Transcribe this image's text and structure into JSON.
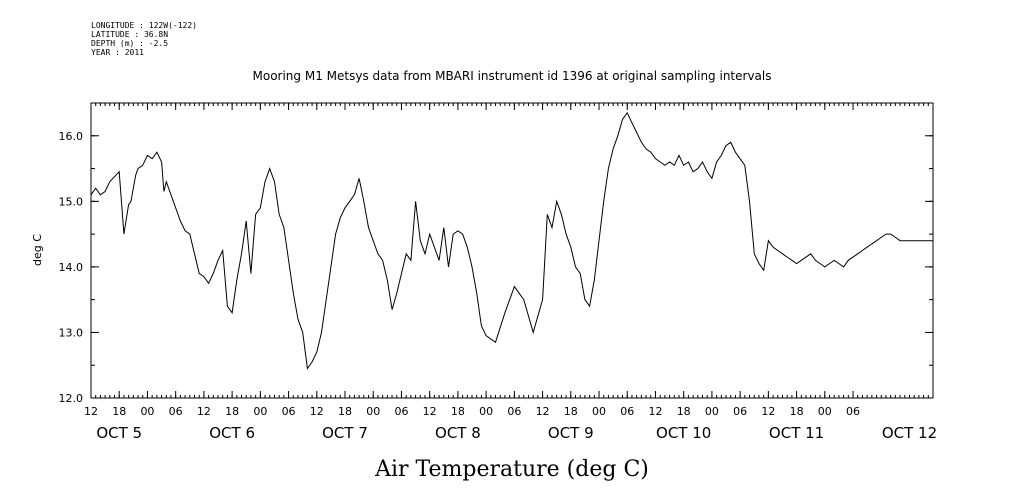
{
  "meta": {
    "longitude": "LONGITUDE : 122W(-122)",
    "latitude": "LATITUDE : 36.8N",
    "depth": "DEPTH (m) : -2.5",
    "year": "YEAR : 2011"
  },
  "chart_data": {
    "type": "line",
    "title": "Mooring M1 Metsys data from MBARI instrument id 1396 at original sampling intervals",
    "ylabel": "deg C",
    "footer_label": "Air Temperature (deg C)",
    "ylim": [
      12.0,
      16.5
    ],
    "xlim_hours": [
      -12,
      167
    ],
    "yticks": [
      "12.0",
      "13.0",
      "14.0",
      "15.0",
      "16.0"
    ],
    "yticks_values": [
      12.0,
      13.0,
      14.0,
      15.0,
      16.0
    ],
    "hour_ticks": [
      "12",
      "18",
      "00",
      "06",
      "12",
      "18",
      "00",
      "06",
      "12",
      "18",
      "00",
      "06",
      "12",
      "18",
      "00",
      "06",
      "12",
      "18",
      "00",
      "06",
      "12",
      "18",
      "00",
      "06",
      "12",
      "18",
      "00",
      "06"
    ],
    "date_labels": [
      "OCT  5",
      "OCT  6",
      "OCT  7",
      "OCT  8",
      "OCT  9",
      "OCT 10",
      "OCT 11",
      "OCT 12"
    ],
    "grid": false,
    "series": [
      {
        "x": [
          -12,
          -11,
          -10,
          -9,
          -8,
          -6,
          -5,
          -4,
          -3.5,
          -3,
          -2.5,
          -2,
          -1,
          0,
          1,
          2,
          3,
          3.5,
          4,
          5,
          6,
          7,
          8,
          9,
          10,
          11,
          12,
          13,
          14,
          15,
          16,
          17,
          18,
          19,
          20,
          21,
          22,
          23,
          24,
          25,
          26,
          27,
          28,
          29,
          30,
          31,
          32,
          33,
          34,
          35,
          36,
          37,
          38,
          39,
          40,
          41,
          42,
          43,
          44,
          45,
          46,
          47,
          48,
          49,
          50,
          51,
          52,
          53,
          54,
          55,
          56,
          57,
          58,
          59,
          60,
          61,
          62,
          63,
          64,
          65,
          66,
          67,
          68,
          69,
          70,
          71,
          72,
          74,
          76,
          78,
          80,
          82,
          84,
          85,
          86,
          87,
          88,
          89,
          90,
          91,
          92,
          93,
          94,
          95,
          96,
          97,
          98,
          99,
          100,
          101,
          102,
          103,
          104,
          105,
          106,
          107,
          108,
          109,
          110,
          111,
          112,
          113,
          114,
          115,
          116,
          117,
          118,
          119,
          120,
          121,
          122,
          123,
          124,
          125,
          126,
          127,
          128,
          129,
          130,
          131,
          132,
          133,
          134,
          135,
          136,
          137,
          138,
          139,
          140,
          141,
          142,
          143,
          144,
          145,
          146,
          147,
          148,
          149,
          150,
          151,
          152,
          153,
          154,
          155,
          156,
          157,
          158,
          159,
          160,
          161,
          162,
          163,
          164,
          165,
          166,
          167
        ],
        "y": [
          15.1,
          15.2,
          15.1,
          15.15,
          15.3,
          15.45,
          14.5,
          14.95,
          15.0,
          15.2,
          15.4,
          15.5,
          15.55,
          15.7,
          15.65,
          15.75,
          15.6,
          15.15,
          15.3,
          15.1,
          14.9,
          14.7,
          14.55,
          14.5,
          14.2,
          13.9,
          13.85,
          13.75,
          13.9,
          14.1,
          14.25,
          13.4,
          13.3,
          13.8,
          14.2,
          14.7,
          13.9,
          14.8,
          14.9,
          15.3,
          15.5,
          15.3,
          14.8,
          14.6,
          14.1,
          13.6,
          13.2,
          13.0,
          12.45,
          12.55,
          12.7,
          13.0,
          13.5,
          14.0,
          14.5,
          14.75,
          14.9,
          15.0,
          15.1,
          15.35,
          15.0,
          14.6,
          14.4,
          14.2,
          14.1,
          13.8,
          13.35,
          13.6,
          13.9,
          14.2,
          14.1,
          15.0,
          14.4,
          14.2,
          14.5,
          14.3,
          14.1,
          14.6,
          14.0,
          14.5,
          14.55,
          14.5,
          14.3,
          14.0,
          13.6,
          13.1,
          12.95,
          12.85,
          13.3,
          13.7,
          13.5,
          13.0,
          13.5,
          14.8,
          14.6,
          15.0,
          14.8,
          14.5,
          14.3,
          14.0,
          13.9,
          13.5,
          13.4,
          13.8,
          14.4,
          15.0,
          15.5,
          15.8,
          16.0,
          16.25,
          16.35,
          16.2,
          16.05,
          15.9,
          15.8,
          15.75,
          15.65,
          15.6,
          15.55,
          15.6,
          15.55,
          15.7,
          15.55,
          15.6,
          15.45,
          15.5,
          15.6,
          15.45,
          15.35,
          15.6,
          15.7,
          15.85,
          15.9,
          15.75,
          15.65,
          15.55,
          15.0,
          14.2,
          14.05,
          13.95,
          14.4,
          14.3,
          14.25,
          14.2,
          14.15,
          14.1,
          14.05,
          14.1,
          14.15,
          14.2,
          14.1,
          14.05,
          14.0,
          14.05,
          14.1,
          14.05,
          14.0,
          14.1,
          14.15,
          14.2,
          14.25,
          14.3,
          14.35,
          14.4,
          14.45,
          14.5,
          14.5,
          14.45,
          14.4,
          14.4,
          14.4,
          14.4,
          14.4,
          14.4,
          14.4,
          14.4
        ]
      }
    ]
  }
}
